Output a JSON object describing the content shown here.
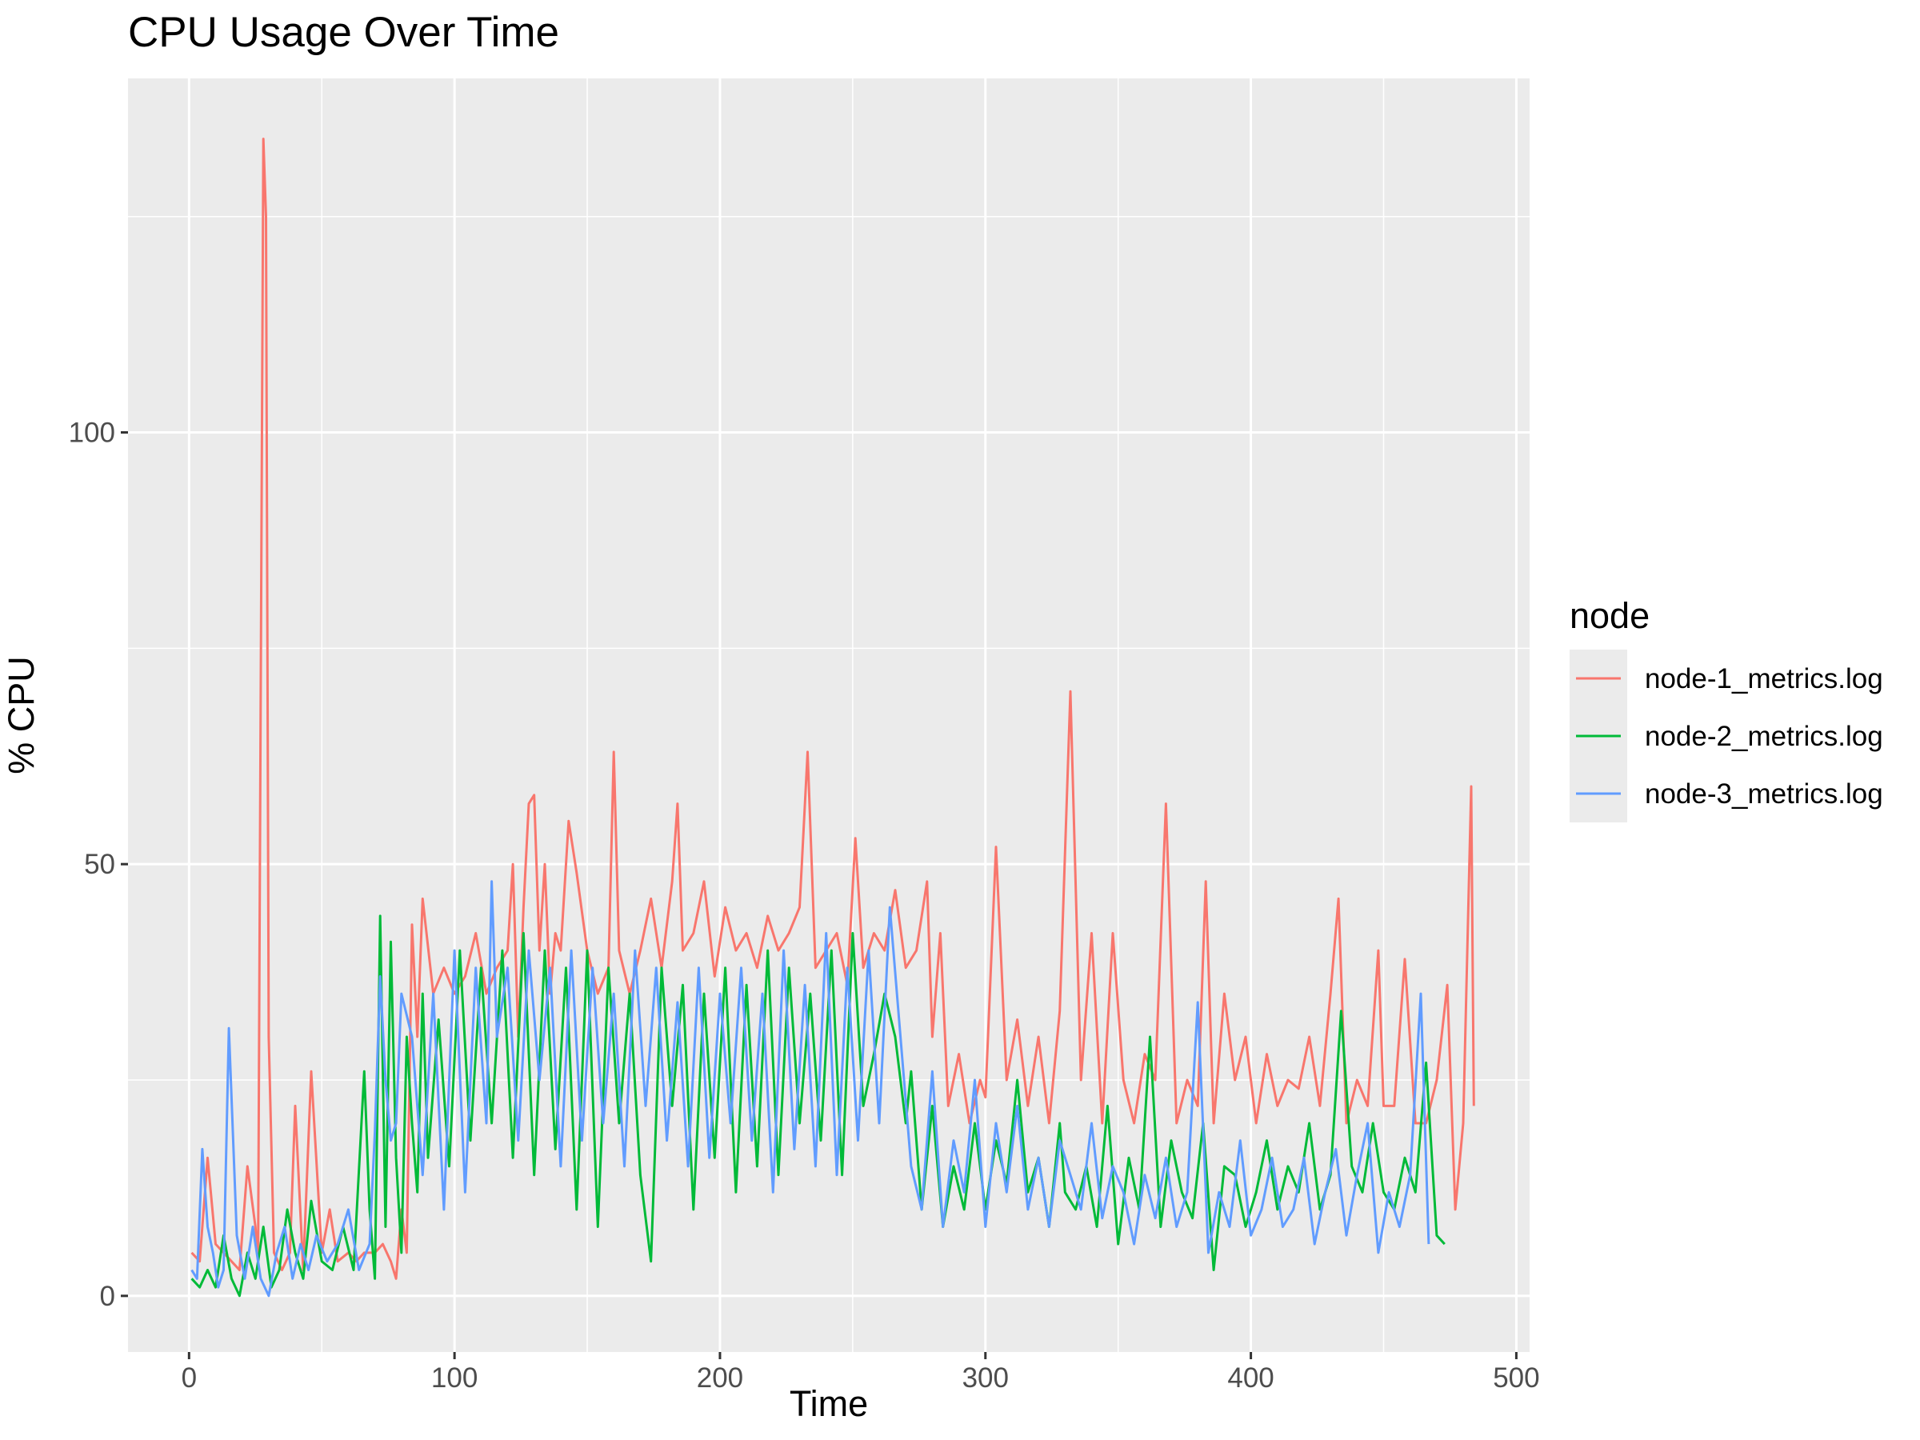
{
  "chart_data": {
    "type": "line",
    "title": "CPU Usage Over Time",
    "xlabel": "Time",
    "ylabel": "% CPU",
    "xlim": [
      -23,
      505
    ],
    "ylim": [
      -6.5,
      141
    ],
    "x_ticks": [
      0,
      100,
      200,
      300,
      400,
      500
    ],
    "y_ticks": [
      0,
      50,
      100
    ],
    "grid": true,
    "legend": {
      "title": "node",
      "position": "right"
    },
    "series": [
      {
        "name": "node-1_metrics.log",
        "color": "#F8766D",
        "x": [
          1,
          4,
          7,
          10,
          13,
          16,
          19,
          22,
          25,
          26,
          27,
          28,
          29,
          30,
          32,
          35,
          38,
          40,
          43,
          46,
          50,
          53,
          56,
          60,
          63,
          66,
          70,
          73,
          76,
          78,
          80,
          82,
          84,
          86,
          88,
          92,
          96,
          100,
          104,
          108,
          112,
          116,
          120,
          122,
          124,
          126,
          128,
          130,
          132,
          134,
          136,
          138,
          140,
          143,
          146,
          150,
          154,
          158,
          160,
          162,
          166,
          170,
          174,
          178,
          182,
          184,
          186,
          190,
          194,
          198,
          202,
          206,
          210,
          214,
          218,
          222,
          226,
          230,
          233,
          236,
          240,
          244,
          248,
          251,
          254,
          258,
          262,
          266,
          270,
          274,
          278,
          280,
          283,
          286,
          290,
          294,
          298,
          300,
          304,
          308,
          312,
          316,
          320,
          324,
          328,
          332,
          336,
          340,
          344,
          348,
          352,
          356,
          360,
          364,
          368,
          372,
          376,
          380,
          383,
          386,
          390,
          394,
          398,
          402,
          406,
          410,
          414,
          418,
          422,
          426,
          430,
          433,
          436,
          440,
          444,
          448,
          450,
          454,
          458,
          462,
          466,
          470,
          474,
          477,
          480,
          483,
          484
        ],
        "y": [
          5,
          4,
          16,
          6,
          5,
          4,
          3,
          15,
          8,
          4,
          70,
          134,
          125,
          30,
          5,
          3,
          5,
          22,
          3,
          26,
          5,
          10,
          4,
          5,
          4,
          5,
          5,
          6,
          4,
          2,
          10,
          5,
          43,
          30,
          46,
          35,
          38,
          35,
          37,
          42,
          35,
          38,
          40,
          50,
          30,
          45,
          57,
          58,
          40,
          50,
          35,
          42,
          40,
          55,
          49,
          40,
          35,
          38,
          63,
          40,
          35,
          40,
          46,
          38,
          48,
          57,
          40,
          42,
          48,
          37,
          45,
          40,
          42,
          38,
          44,
          40,
          42,
          45,
          63,
          38,
          40,
          42,
          36,
          53,
          38,
          42,
          40,
          47,
          38,
          40,
          48,
          30,
          42,
          22,
          28,
          20,
          25,
          23,
          52,
          25,
          32,
          22,
          30,
          20,
          33,
          70,
          25,
          42,
          20,
          42,
          25,
          20,
          28,
          25,
          57,
          20,
          25,
          22,
          48,
          20,
          35,
          25,
          30,
          20,
          28,
          22,
          25,
          24,
          30,
          22,
          35,
          46,
          20,
          25,
          22,
          40,
          22,
          22,
          39,
          20,
          20,
          25,
          36,
          10,
          20,
          59,
          22
        ]
      },
      {
        "name": "node-2_metrics.log",
        "color": "#00BA38",
        "x": [
          1,
          4,
          7,
          10,
          13,
          16,
          19,
          22,
          25,
          28,
          31,
          34,
          37,
          40,
          43,
          46,
          50,
          54,
          58,
          62,
          66,
          68,
          70,
          72,
          74,
          76,
          78,
          80,
          82,
          84,
          86,
          88,
          90,
          94,
          98,
          102,
          106,
          110,
          114,
          118,
          122,
          126,
          130,
          134,
          138,
          142,
          146,
          150,
          154,
          158,
          162,
          166,
          170,
          174,
          178,
          182,
          186,
          190,
          194,
          198,
          202,
          206,
          210,
          214,
          218,
          222,
          226,
          230,
          234,
          238,
          242,
          246,
          250,
          254,
          258,
          262,
          266,
          270,
          272,
          276,
          280,
          284,
          288,
          292,
          296,
          300,
          304,
          308,
          312,
          316,
          320,
          324,
          328,
          330,
          334,
          338,
          342,
          346,
          350,
          354,
          358,
          362,
          366,
          370,
          374,
          378,
          382,
          386,
          390,
          394,
          398,
          402,
          406,
          410,
          414,
          418,
          422,
          426,
          430,
          434,
          438,
          442,
          446,
          450,
          454,
          458,
          462,
          466,
          470,
          473
        ],
        "y": [
          2,
          1,
          3,
          1,
          7,
          2,
          0,
          5,
          2,
          8,
          1,
          3,
          10,
          5,
          2,
          11,
          4,
          3,
          8,
          3,
          26,
          10,
          2,
          44,
          8,
          41,
          16,
          5,
          30,
          20,
          12,
          35,
          16,
          32,
          15,
          40,
          18,
          38,
          20,
          40,
          16,
          42,
          14,
          40,
          17,
          38,
          10,
          40,
          8,
          38,
          20,
          35,
          14,
          4,
          38,
          22,
          36,
          10,
          35,
          16,
          38,
          12,
          36,
          15,
          40,
          14,
          38,
          20,
          35,
          18,
          40,
          14,
          42,
          22,
          28,
          35,
          30,
          20,
          26,
          10,
          22,
          8,
          15,
          10,
          20,
          10,
          18,
          13,
          25,
          12,
          16,
          8,
          20,
          12,
          10,
          15,
          8,
          22,
          6,
          16,
          10,
          30,
          8,
          18,
          12,
          9,
          20,
          3,
          15,
          14,
          8,
          12,
          18,
          10,
          15,
          12,
          20,
          10,
          14,
          33,
          15,
          12,
          20,
          12,
          10,
          16,
          12,
          27,
          7,
          6
        ],
        "width": 1
      },
      {
        "name": "node-3_metrics.log",
        "color": "#619CFF",
        "x": [
          1,
          3,
          5,
          7,
          9,
          11,
          13,
          15,
          18,
          21,
          24,
          27,
          30,
          33,
          36,
          39,
          42,
          45,
          48,
          52,
          56,
          60,
          64,
          68,
          70,
          72,
          74,
          76,
          78,
          80,
          84,
          88,
          92,
          96,
          100,
          104,
          108,
          112,
          114,
          116,
          120,
          124,
          128,
          132,
          136,
          140,
          144,
          148,
          152,
          156,
          160,
          164,
          168,
          172,
          176,
          180,
          184,
          188,
          192,
          196,
          200,
          204,
          208,
          212,
          216,
          220,
          224,
          228,
          232,
          236,
          240,
          244,
          248,
          252,
          256,
          260,
          264,
          268,
          272,
          276,
          280,
          284,
          288,
          292,
          296,
          300,
          304,
          308,
          312,
          316,
          320,
          324,
          328,
          332,
          336,
          340,
          344,
          348,
          352,
          356,
          360,
          364,
          368,
          372,
          376,
          380,
          384,
          388,
          392,
          396,
          400,
          404,
          408,
          412,
          416,
          420,
          424,
          428,
          432,
          436,
          440,
          444,
          448,
          452,
          456,
          460,
          464,
          467
        ],
        "y": [
          3,
          2,
          17,
          8,
          5,
          1,
          3,
          31,
          7,
          2,
          8,
          2,
          0,
          5,
          8,
          2,
          6,
          3,
          7,
          4,
          6,
          10,
          3,
          6,
          19,
          37,
          25,
          18,
          20,
          35,
          30,
          14,
          35,
          10,
          40,
          12,
          38,
          20,
          48,
          30,
          38,
          18,
          40,
          25,
          38,
          15,
          40,
          18,
          38,
          20,
          35,
          15,
          40,
          22,
          38,
          18,
          34,
          15,
          38,
          16,
          35,
          20,
          38,
          18,
          35,
          12,
          40,
          17,
          36,
          15,
          42,
          14,
          38,
          18,
          40,
          20,
          45,
          30,
          15,
          10,
          26,
          8,
          18,
          12,
          25,
          8,
          20,
          12,
          22,
          10,
          16,
          8,
          18,
          14,
          10,
          20,
          9,
          15,
          12,
          6,
          14,
          9,
          16,
          8,
          12,
          34,
          5,
          12,
          8,
          18,
          7,
          10,
          16,
          8,
          10,
          16,
          6,
          12,
          17,
          7,
          14,
          20,
          5,
          12,
          8,
          14,
          35,
          6
        ]
      }
    ]
  }
}
